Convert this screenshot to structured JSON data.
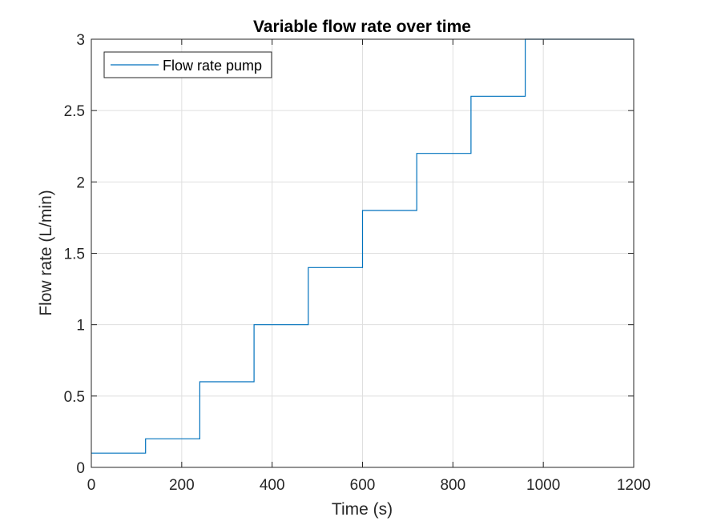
{
  "chart_data": {
    "type": "line",
    "step": true,
    "title": "Variable flow rate over time",
    "xlabel": "Time (s)",
    "ylabel": "Flow rate (L/min)",
    "xlim": [
      0,
      1200
    ],
    "ylim": [
      0,
      3
    ],
    "x_ticks": [
      "0",
      "200",
      "400",
      "600",
      "800",
      "1000",
      "1200"
    ],
    "y_ticks": [
      "0",
      "0.5",
      "1",
      "1.5",
      "2",
      "2.5",
      "3"
    ],
    "grid": true,
    "legend_position": "top-left",
    "series": [
      {
        "name": "Flow rate pump",
        "color": "#0072BD",
        "x": [
          0,
          120,
          240,
          360,
          480,
          600,
          720,
          840,
          960,
          1200
        ],
        "y": [
          0.1,
          0.2,
          0.6,
          1.0,
          1.4,
          1.8,
          2.2,
          2.6,
          3.0,
          3.0
        ]
      }
    ]
  }
}
